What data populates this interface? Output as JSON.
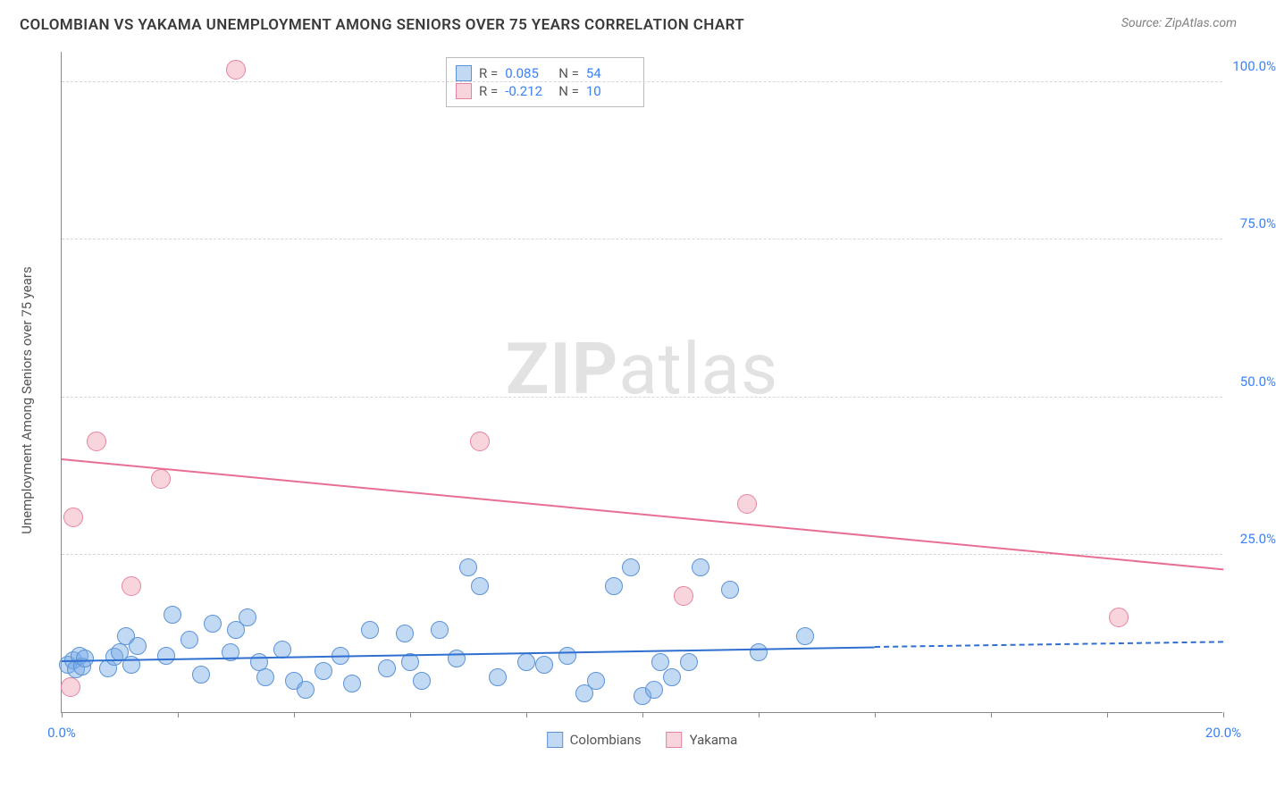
{
  "header": {
    "title": "COLOMBIAN VS YAKAMA UNEMPLOYMENT AMONG SENIORS OVER 75 YEARS CORRELATION CHART",
    "source_label": "Source: ZipAtlas.com"
  },
  "chart": {
    "type": "scatter",
    "ylabel": "Unemployment Among Seniors over 75 years",
    "watermark_bold": "ZIP",
    "watermark_rest": "atlas",
    "xlim": [
      0,
      20
    ],
    "ylim": [
      0,
      105
    ],
    "xtick_positions": [
      0,
      2,
      4,
      6,
      8,
      10,
      12,
      14,
      16,
      18,
      20
    ],
    "xtick_labels": {
      "0": "0.0%",
      "20": "20.0%"
    },
    "ytick_positions": [
      25,
      50,
      75,
      100
    ],
    "ytick_labels": {
      "25": "25.0%",
      "50": "50.0%",
      "75": "75.0%",
      "100": "100.0%"
    },
    "grid_color": "#d6d6d6",
    "background_color": "#ffffff",
    "axis_color": "#888888",
    "label_fontsize": 15,
    "tick_fontsize": 15,
    "tick_color": "#3b82f6",
    "series": {
      "colombians": {
        "label": "Colombians",
        "marker_fill": "rgba(120,170,230,0.45)",
        "marker_stroke": "#5c93d6",
        "marker_radius": 10,
        "trend_color": "#2f6fd0",
        "trend_solid": {
          "x1": 0,
          "y1": 8.0,
          "x2": 14.0,
          "y2": 10.2
        },
        "trend_dash": {
          "x1": 14.0,
          "y1": 10.2,
          "x2": 20.0,
          "y2": 11.0
        },
        "R": "0.085",
        "N": "54",
        "points": [
          [
            0.1,
            7.5
          ],
          [
            0.2,
            8.2
          ],
          [
            0.25,
            6.8
          ],
          [
            0.3,
            9.0
          ],
          [
            0.35,
            7.2
          ],
          [
            0.4,
            8.5
          ],
          [
            0.8,
            7.0
          ],
          [
            0.9,
            8.8
          ],
          [
            1.0,
            9.5
          ],
          [
            1.1,
            12.0
          ],
          [
            1.2,
            7.5
          ],
          [
            1.3,
            10.5
          ],
          [
            1.8,
            9.0
          ],
          [
            1.9,
            15.5
          ],
          [
            2.2,
            11.5
          ],
          [
            2.4,
            6.0
          ],
          [
            2.6,
            14.0
          ],
          [
            2.9,
            9.5
          ],
          [
            3.0,
            13.0
          ],
          [
            3.2,
            15.0
          ],
          [
            3.4,
            8.0
          ],
          [
            3.5,
            5.5
          ],
          [
            3.8,
            10.0
          ],
          [
            4.0,
            5.0
          ],
          [
            4.2,
            3.5
          ],
          [
            4.5,
            6.5
          ],
          [
            4.8,
            9.0
          ],
          [
            5.0,
            4.5
          ],
          [
            5.3,
            13.0
          ],
          [
            5.6,
            7.0
          ],
          [
            5.9,
            12.5
          ],
          [
            6.0,
            8.0
          ],
          [
            6.2,
            5.0
          ],
          [
            6.5,
            13.0
          ],
          [
            6.8,
            8.5
          ],
          [
            7.0,
            23.0
          ],
          [
            7.2,
            20.0
          ],
          [
            7.5,
            5.5
          ],
          [
            8.0,
            8.0
          ],
          [
            8.3,
            7.5
          ],
          [
            8.7,
            9.0
          ],
          [
            9.0,
            3.0
          ],
          [
            9.2,
            5.0
          ],
          [
            9.5,
            20.0
          ],
          [
            9.8,
            23.0
          ],
          [
            10.0,
            2.5
          ],
          [
            10.2,
            3.5
          ],
          [
            10.3,
            8.0
          ],
          [
            10.5,
            5.5
          ],
          [
            10.8,
            8.0
          ],
          [
            11.0,
            23.0
          ],
          [
            11.5,
            19.5
          ],
          [
            12.0,
            9.5
          ],
          [
            12.8,
            12.0
          ]
        ]
      },
      "yakama": {
        "label": "Yakama",
        "marker_fill": "rgba(240,160,180,0.45)",
        "marker_stroke": "#e6849f",
        "marker_radius": 11,
        "trend_color": "#e86f93",
        "trend_solid": {
          "x1": 0,
          "y1": 40.0,
          "x2": 20.0,
          "y2": 22.5
        },
        "R": "-0.212",
        "N": "10",
        "points": [
          [
            0.15,
            4.0
          ],
          [
            0.2,
            31.0
          ],
          [
            0.6,
            43.0
          ],
          [
            1.2,
            20.0
          ],
          [
            1.7,
            37.0
          ],
          [
            3.0,
            102.0
          ],
          [
            7.2,
            43.0
          ],
          [
            10.7,
            18.5
          ],
          [
            11.8,
            33.0
          ],
          [
            18.2,
            15.0
          ]
        ]
      }
    },
    "rn_box": {
      "rows": [
        {
          "swatch_fill": "rgba(120,170,230,0.45)",
          "swatch_stroke": "#5c93d6",
          "R": "0.085",
          "N": "54"
        },
        {
          "swatch_fill": "rgba(240,160,180,0.45)",
          "swatch_stroke": "#e6849f",
          "R": "-0.212",
          "N": "10"
        }
      ]
    },
    "bottom_legend": [
      {
        "swatch_fill": "rgba(120,170,230,0.45)",
        "swatch_stroke": "#5c93d6",
        "label": "Colombians"
      },
      {
        "swatch_fill": "rgba(240,160,180,0.45)",
        "swatch_stroke": "#e6849f",
        "label": "Yakama"
      }
    ]
  }
}
